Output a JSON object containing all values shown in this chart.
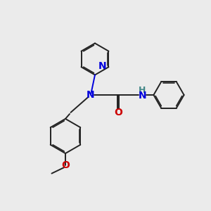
{
  "bg_color": "#ebebeb",
  "bond_color": "#222222",
  "bond_width": 1.4,
  "N_color": "#0000dd",
  "O_color": "#cc0000",
  "H_color": "#448888",
  "font_size": 8.5,
  "fig_size": [
    3.0,
    3.0
  ],
  "dpi": 100,
  "xlim": [
    0,
    10
  ],
  "ylim": [
    0,
    10
  ]
}
